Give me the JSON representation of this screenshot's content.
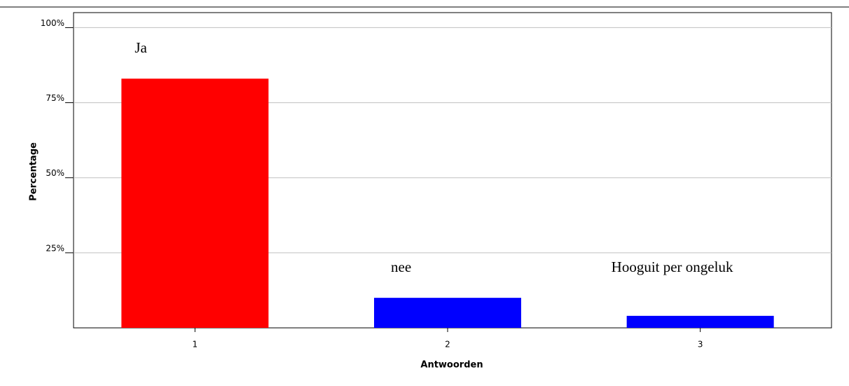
{
  "chart_data": {
    "type": "bar",
    "x_label": "Antwoorden",
    "y_label": "Percentage",
    "categories": [
      "1",
      "2",
      "3"
    ],
    "values": [
      83,
      10,
      4
    ],
    "bar_labels": [
      "Ja",
      "nee",
      "Hooguit per ongeluk"
    ],
    "colors": [
      "#ff0000",
      "#0000ff",
      "#0000ff"
    ],
    "ylim": [
      0,
      105
    ],
    "yticks": [
      {
        "value": 25,
        "label": "25%"
      },
      {
        "value": 50,
        "label": "50%"
      },
      {
        "value": 75,
        "label": "75%"
      },
      {
        "value": 100,
        "label": "100%"
      }
    ],
    "grid": true
  }
}
